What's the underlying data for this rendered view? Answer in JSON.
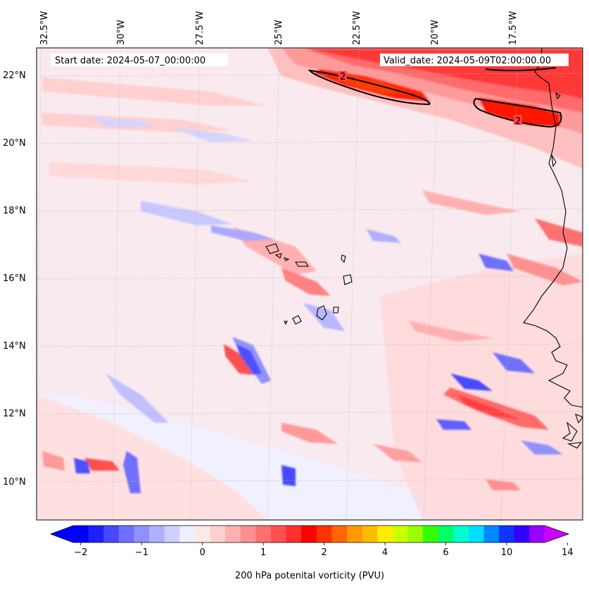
{
  "map": {
    "title_start": "Start date: 2024-05-07_00:00:00",
    "title_valid": "Valid_date: 2024-05-09T02:00:00.00",
    "lon_labels": [
      "32.5°W",
      "30°W",
      "27.5°W",
      "25°W",
      "22.5°W",
      "20°W",
      "17.5°W"
    ],
    "lat_labels": [
      "22°N",
      "20°N",
      "18°N",
      "16°N",
      "14°N",
      "12°N",
      "10°N"
    ],
    "contour_label": "2",
    "contour_labels": [
      "2",
      "2"
    ],
    "extent": {
      "lon_min": -33.4,
      "lon_max": -16.0,
      "lat_min": 8.8,
      "lat_max": 22.8
    }
  },
  "colorbar": {
    "label": "200 hPa potenital vorticity (PVU)",
    "ticks": [
      "−2",
      "−1",
      "0",
      "1",
      "2",
      "4",
      "6",
      "10",
      "14"
    ],
    "colors": [
      "#0000ff",
      "#2020ff",
      "#4848ff",
      "#7070ff",
      "#9090ff",
      "#b0b0ff",
      "#d0d0ff",
      "#eeeeff",
      "#ffe8e8",
      "#ffd0d0",
      "#ffb0b0",
      "#ff9090",
      "#ff7070",
      "#ff5050",
      "#ff3030",
      "#ff0000",
      "#ff3300",
      "#ff6600",
      "#ff9900",
      "#ffbb00",
      "#ffee00",
      "#ccff00",
      "#99ff00",
      "#33ff00",
      "#00ff66",
      "#00ffcc",
      "#00ddff",
      "#0088ff",
      "#1133ff",
      "#3300ff",
      "#9900ff"
    ],
    "extend_low_color": "#0000ff",
    "extend_high_color": "#cc00ff"
  }
}
